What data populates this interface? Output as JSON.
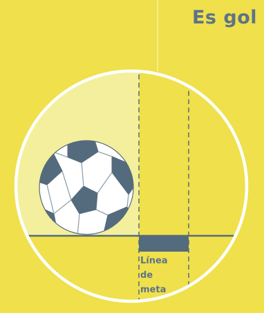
{
  "title": "Es gol",
  "goal_line_label": [
    "Línea",
    "de",
    "meta"
  ],
  "colors": {
    "background": "#efe04c",
    "ball_zone": "#f4ef9c",
    "lens_border": "#ffffff",
    "accent": "#546b7d"
  },
  "icons": [
    "soccer-ball-icon"
  ]
}
